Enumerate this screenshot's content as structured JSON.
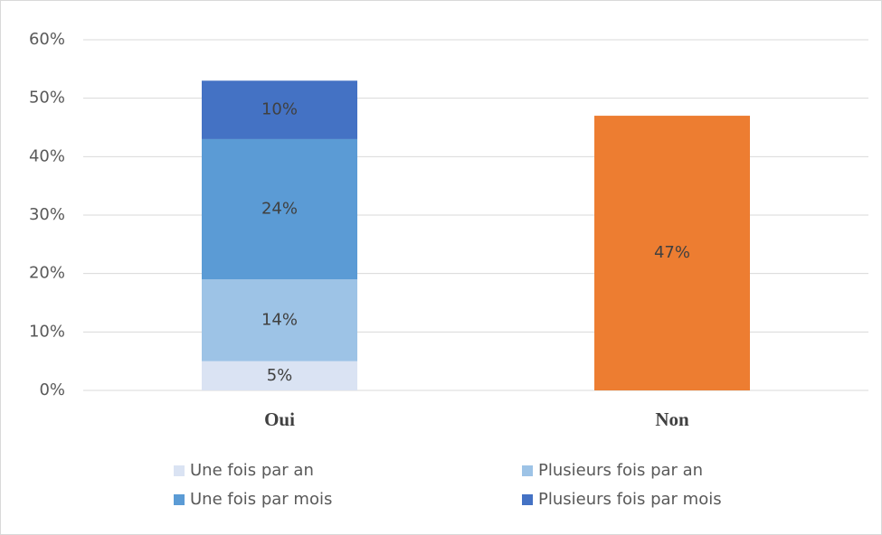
{
  "chart_data": {
    "type": "stacked_bar",
    "categories": [
      "Oui",
      "Non"
    ],
    "series": [
      {
        "name": "Une fois par an",
        "color": "#dae3f3",
        "values": [
          5,
          null
        ],
        "value_labels": [
          "5%",
          null
        ]
      },
      {
        "name": "Plusieurs fois par an",
        "color": "#9dc3e6",
        "values": [
          14,
          null
        ],
        "value_labels": [
          "14%",
          null
        ]
      },
      {
        "name": "Une fois par mois",
        "color": "#5b9bd5",
        "values": [
          24,
          null
        ],
        "value_labels": [
          "24%",
          null
        ]
      },
      {
        "name": "Plusieurs fois par mois",
        "color": "#4472c4",
        "values": [
          10,
          null
        ],
        "value_labels": [
          "10%",
          null
        ]
      },
      {
        "color": "#ed7d31",
        "values": [
          null,
          47
        ],
        "value_labels": [
          null,
          "47%"
        ]
      }
    ],
    "ylim": [
      0,
      60
    ],
    "yticks": [
      {
        "value": 0,
        "label": "0%"
      },
      {
        "value": 10,
        "label": "10%"
      },
      {
        "value": 20,
        "label": "20%"
      },
      {
        "value": 30,
        "label": "30%"
      },
      {
        "value": 40,
        "label": "40%"
      },
      {
        "value": 50,
        "label": "50%"
      },
      {
        "value": 60,
        "label": "60%"
      }
    ],
    "grid": true
  }
}
